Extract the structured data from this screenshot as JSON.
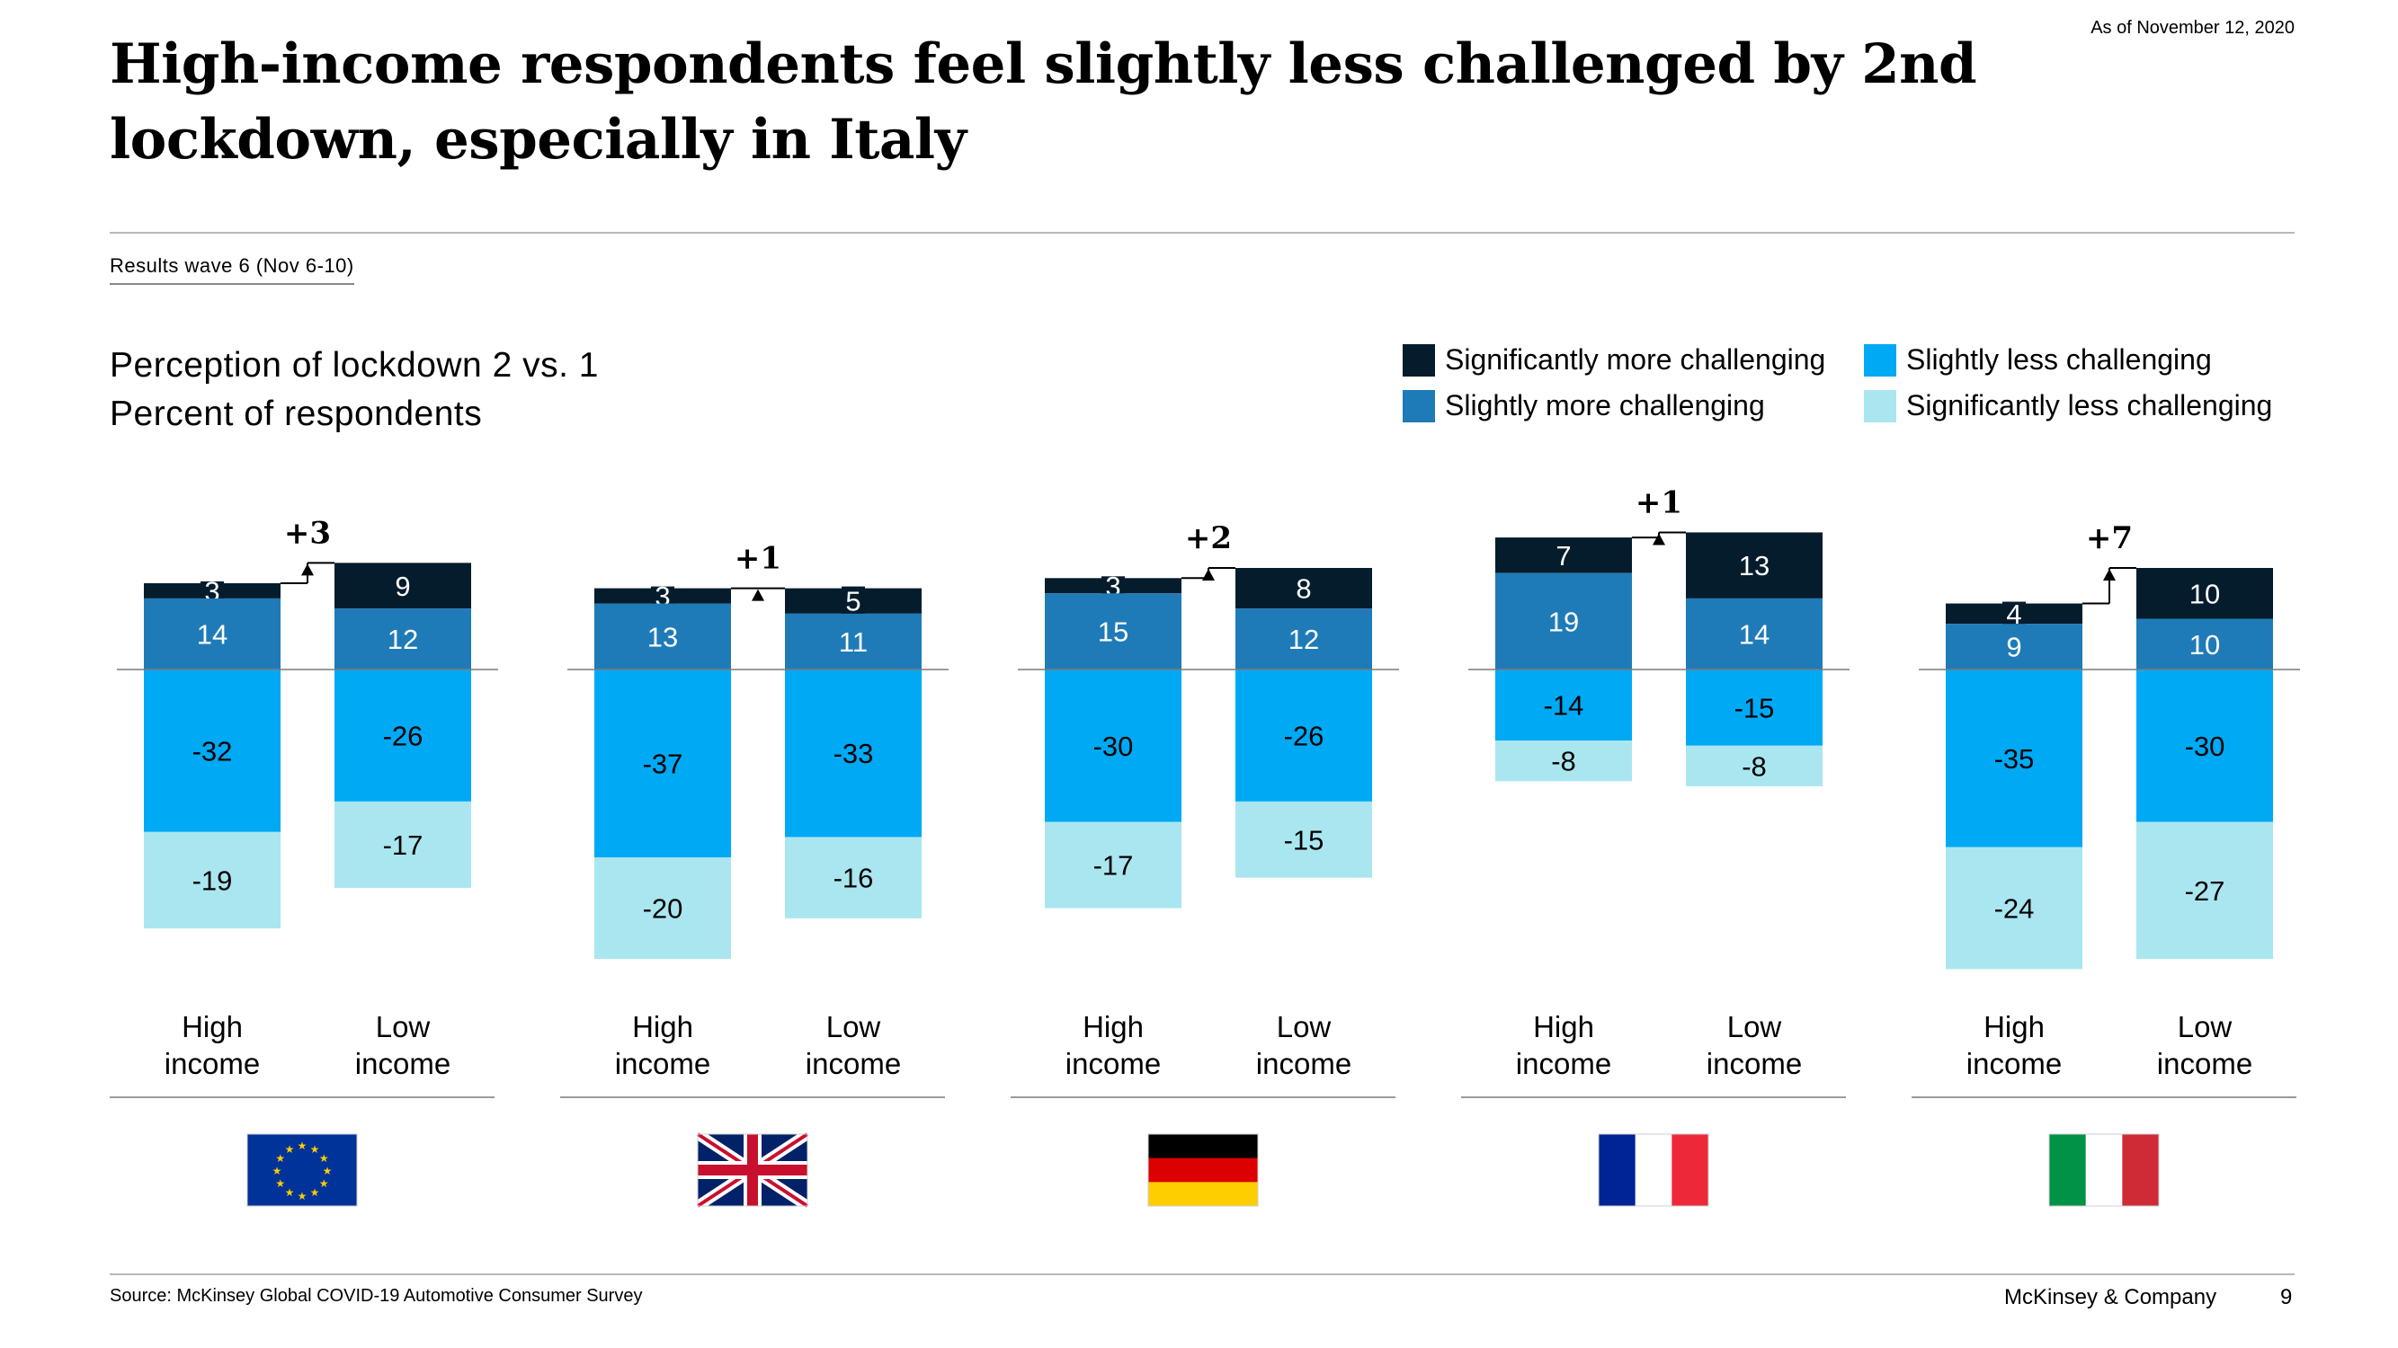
{
  "header": {
    "date": "As of November 12, 2020",
    "title": "High-income respondents feel slightly less challenged by 2nd lockdown, especially in Italy",
    "wave": "Results wave 6 (Nov 6-10)"
  },
  "chart_heading": {
    "line1": "Perception of lockdown 2 vs. 1",
    "line2": "Percent of respondents"
  },
  "legend": [
    {
      "label": "Significantly more challenging",
      "color": "#051c2c"
    },
    {
      "label": "Slightly less challenging",
      "color": "#00a9f4"
    },
    {
      "label": "Slightly more challenging",
      "color": "#1f7bb8"
    },
    {
      "label": "Significantly less challenging",
      "color": "#aae6f0"
    }
  ],
  "chart_data": {
    "type": "bar",
    "stacked": true,
    "diverging": true,
    "series_names": [
      "Significantly more challenging",
      "Slightly more challenging",
      "Slightly less challenging",
      "Significantly less challenging"
    ],
    "groups": [
      {
        "flag": "flag-eu",
        "diff": "+3",
        "bars": [
          {
            "label": [
              "High",
              "income"
            ],
            "values": [
              3,
              14,
              -32,
              -19
            ]
          },
          {
            "label": [
              "Low",
              "income"
            ],
            "values": [
              9,
              12,
              -26,
              -17
            ]
          }
        ]
      },
      {
        "flag": "flag-uk",
        "diff": "+1",
        "bars": [
          {
            "label": [
              "High",
              "income"
            ],
            "values": [
              3,
              13,
              -37,
              -20
            ]
          },
          {
            "label": [
              "Low",
              "income"
            ],
            "values": [
              5,
              11,
              -33,
              -16
            ]
          }
        ]
      },
      {
        "flag": "flag-germany",
        "diff": "+2",
        "bars": [
          {
            "label": [
              "High",
              "income"
            ],
            "values": [
              3,
              15,
              -30,
              -17
            ]
          },
          {
            "label": [
              "Low",
              "income"
            ],
            "values": [
              8,
              12,
              -26,
              -15
            ]
          }
        ]
      },
      {
        "flag": "flag-france",
        "diff": "+1",
        "bars": [
          {
            "label": [
              "High",
              "income"
            ],
            "values": [
              7,
              19,
              -14,
              -8
            ]
          },
          {
            "label": [
              "Low",
              "income"
            ],
            "values": [
              13,
              14,
              -15,
              -8
            ]
          }
        ]
      },
      {
        "flag": "flag-italy",
        "diff": "+7",
        "bars": [
          {
            "label": [
              "High",
              "income"
            ],
            "values": [
              4,
              9,
              -35,
              -24
            ]
          },
          {
            "label": [
              "Low",
              "income"
            ],
            "values": [
              10,
              10,
              -30,
              -27
            ]
          }
        ]
      }
    ]
  },
  "footer": {
    "source": "Source: McKinsey Global COVID-19 Automotive Consumer Survey",
    "company": "McKinsey & Company",
    "page": "9"
  }
}
